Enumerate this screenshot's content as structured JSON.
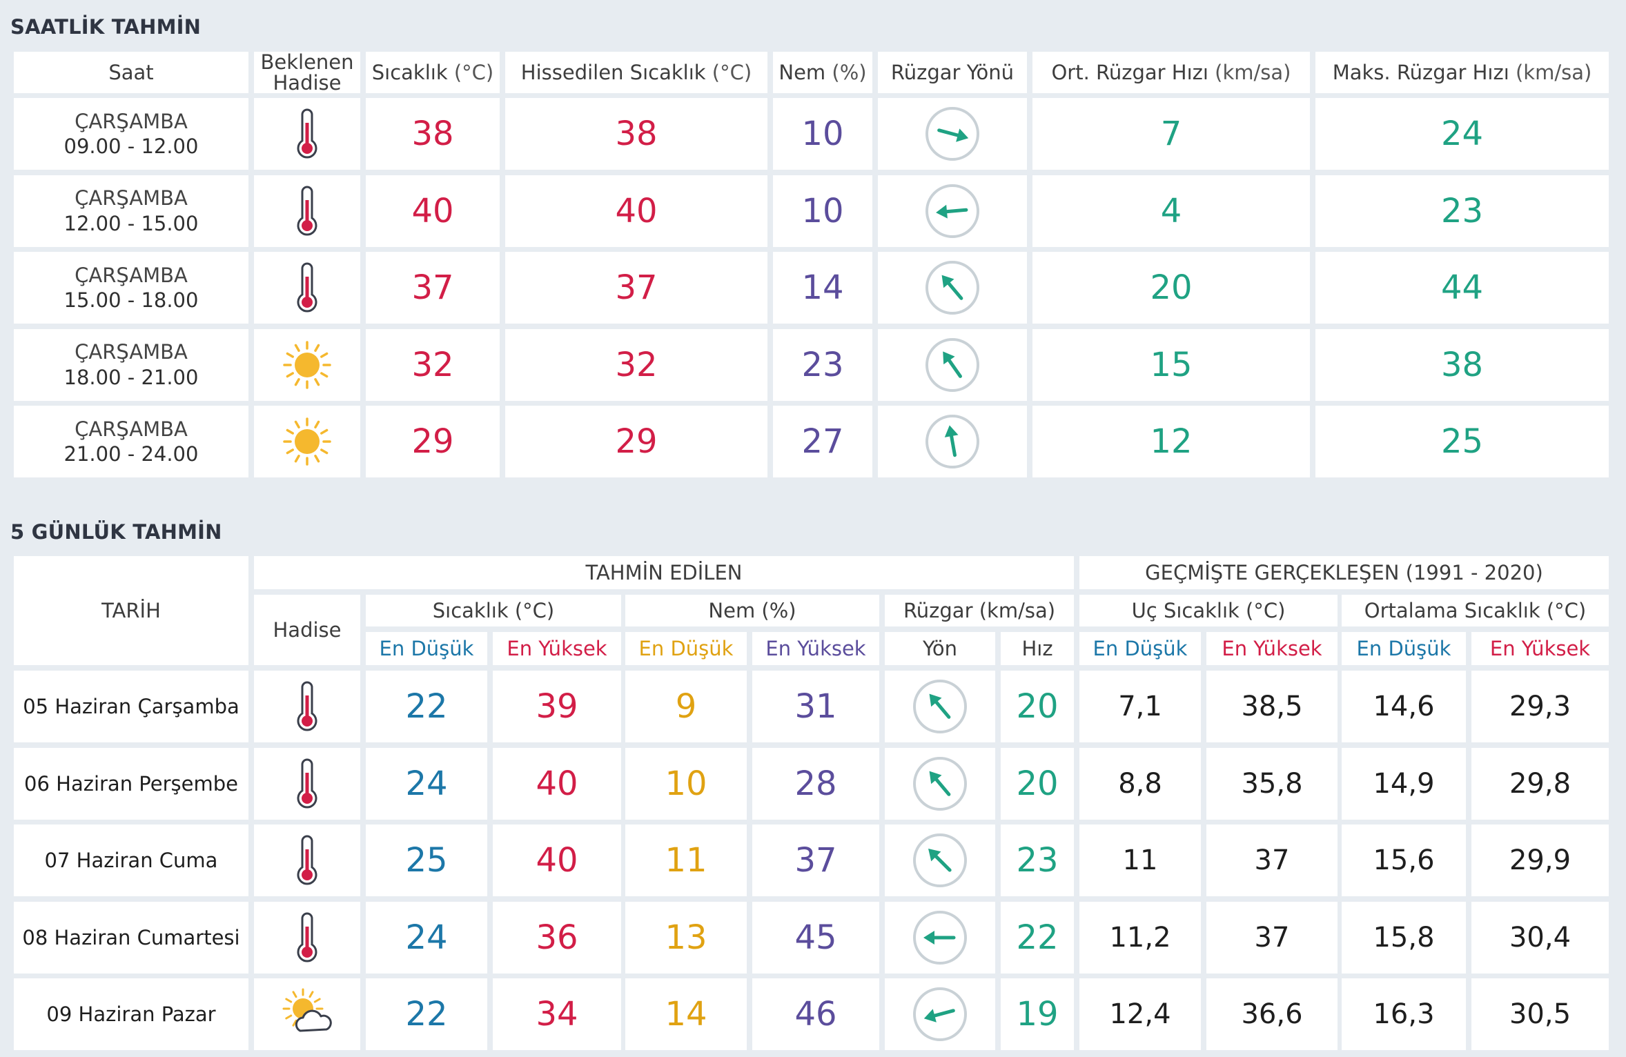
{
  "hourly": {
    "title": "SAATLİK TAHMİN",
    "headers": {
      "saat": "Saat",
      "hadise_1": "Beklenen",
      "hadise_2": "Hadise",
      "sicaklik": "Sıcaklık",
      "sicaklik_unit": "(°C)",
      "hissedilen": "Hissedilen Sıcaklık",
      "hissedilen_unit": "(°C)",
      "nem": "Nem",
      "nem_unit": "(%)",
      "ruzgar_yonu": "Rüzgar Yönü",
      "ort_ruzgar": "Ort. Rüzgar Hızı",
      "ort_ruzgar_unit": "(km/sa)",
      "maks_ruzgar": "Maks. Rüzgar Hızı",
      "maks_ruzgar_unit": "(km/sa)"
    },
    "rows": [
      {
        "day": "ÇARŞAMBA",
        "time": "09.00 - 12.00",
        "icon": "thermometer-icon",
        "temp": "38",
        "feels": "38",
        "humidity": "10",
        "wind_dir_deg": 285,
        "wind_avg": "7",
        "wind_max": "24"
      },
      {
        "day": "ÇARŞAMBA",
        "time": "12.00 - 15.00",
        "icon": "thermometer-icon",
        "temp": "40",
        "feels": "40",
        "humidity": "10",
        "wind_dir_deg": 85,
        "wind_avg": "4",
        "wind_max": "23"
      },
      {
        "day": "ÇARŞAMBA",
        "time": "15.00 - 18.00",
        "icon": "thermometer-icon",
        "temp": "37",
        "feels": "37",
        "humidity": "14",
        "wind_dir_deg": 140,
        "wind_avg": "20",
        "wind_max": "44"
      },
      {
        "day": "ÇARŞAMBA",
        "time": "18.00 - 21.00",
        "icon": "sun-icon",
        "temp": "32",
        "feels": "32",
        "humidity": "23",
        "wind_dir_deg": 145,
        "wind_avg": "15",
        "wind_max": "38"
      },
      {
        "day": "ÇARŞAMBA",
        "time": "21.00 - 24.00",
        "icon": "sun-icon",
        "temp": "29",
        "feels": "29",
        "humidity": "27",
        "wind_dir_deg": 170,
        "wind_avg": "12",
        "wind_max": "25"
      }
    ]
  },
  "daily": {
    "title": "5 GÜNLÜK TAHMİN",
    "headers": {
      "tarih": "TARİH",
      "tahmin_edilen": "TAHMİN EDİLEN",
      "gecmiste": "GEÇMİŞTE GERÇEKLEŞEN (1991 - 2020)",
      "hadise": "Hadise",
      "sicaklik": "Sıcaklık (°C)",
      "nem": "Nem (%)",
      "ruzgar": "Rüzgar (km/sa)",
      "uc_sicaklik": "Uç Sıcaklık (°C)",
      "ortalama_sicaklik": "Ortalama Sıcaklık (°C)",
      "en_dusuk": "En Düşük",
      "en_yuksek": "En Yüksek",
      "yon": "Yön",
      "hiz": "Hız"
    },
    "rows": [
      {
        "date": "05 Haziran Çarşamba",
        "icon": "thermometer-icon",
        "temp_min": "22",
        "temp_max": "39",
        "hum_min": "9",
        "hum_max": "31",
        "wind_dir_deg": 140,
        "wind_speed": "20",
        "uc_min": "7,1",
        "uc_max": "38,5",
        "ort_min": "14,6",
        "ort_max": "29,3"
      },
      {
        "date": "06 Haziran Perşembe",
        "icon": "thermometer-icon",
        "temp_min": "24",
        "temp_max": "40",
        "hum_min": "10",
        "hum_max": "28",
        "wind_dir_deg": 140,
        "wind_speed": "20",
        "uc_min": "8,8",
        "uc_max": "35,8",
        "ort_min": "14,9",
        "ort_max": "29,8"
      },
      {
        "date": "07 Haziran Cuma",
        "icon": "thermometer-icon",
        "temp_min": "25",
        "temp_max": "40",
        "hum_min": "11",
        "hum_max": "37",
        "wind_dir_deg": 135,
        "wind_speed": "23",
        "uc_min": "11",
        "uc_max": "37",
        "ort_min": "15,6",
        "ort_max": "29,9"
      },
      {
        "date": "08 Haziran Cumartesi",
        "icon": "thermometer-icon",
        "temp_min": "24",
        "temp_max": "36",
        "hum_min": "13",
        "hum_max": "45",
        "wind_dir_deg": 90,
        "wind_speed": "22",
        "uc_min": "11,2",
        "uc_max": "37",
        "ort_min": "15,8",
        "ort_max": "30,4"
      },
      {
        "date": "09 Haziran Pazar",
        "icon": "partly-cloudy-icon",
        "temp_min": "22",
        "temp_max": "34",
        "hum_min": "14",
        "hum_max": "46",
        "wind_dir_deg": 75,
        "wind_speed": "19",
        "uc_min": "12,4",
        "uc_max": "36,6",
        "ort_min": "16,3",
        "ort_max": "30,5"
      }
    ]
  },
  "colors": {
    "temperature": "#d21e47",
    "humidity": "#5b4d9c",
    "wind": "#1fa283",
    "min_temp": "#1c77a8",
    "min_humidity": "#e0a212",
    "sun": "#f5b82e"
  }
}
